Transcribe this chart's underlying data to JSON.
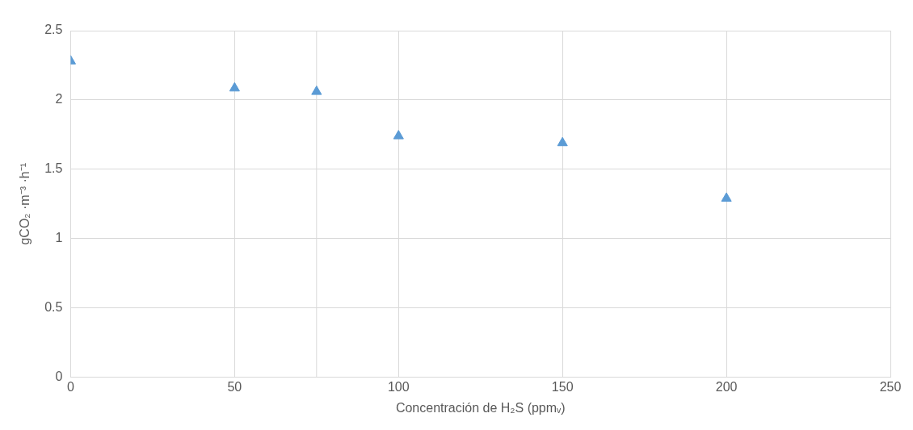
{
  "chart_data": {
    "type": "scatter",
    "xlabel": "Concentración de H₂S (ppmᵥ)",
    "ylabel": "gCO₂ ·m⁻³ ·h⁻¹",
    "x": [
      0,
      50,
      75,
      100,
      150,
      200
    ],
    "series": [
      {
        "color": "#5b9bd5",
        "values": [
          2.28,
          2.085,
          2.06,
          1.74,
          1.69,
          1.29
        ]
      }
    ],
    "xlim": [
      0,
      250
    ],
    "xticks": [
      0,
      50,
      100,
      150,
      200,
      250
    ],
    "ylim": [
      0,
      2.5
    ],
    "yticks": [
      0,
      0.5,
      1,
      1.5,
      2,
      2.5
    ],
    "grid": true,
    "legend": false,
    "marker": "triangle",
    "ref_lines": [
      {
        "axis": "x",
        "value": 75,
        "color": "#d9d9d9"
      }
    ]
  }
}
